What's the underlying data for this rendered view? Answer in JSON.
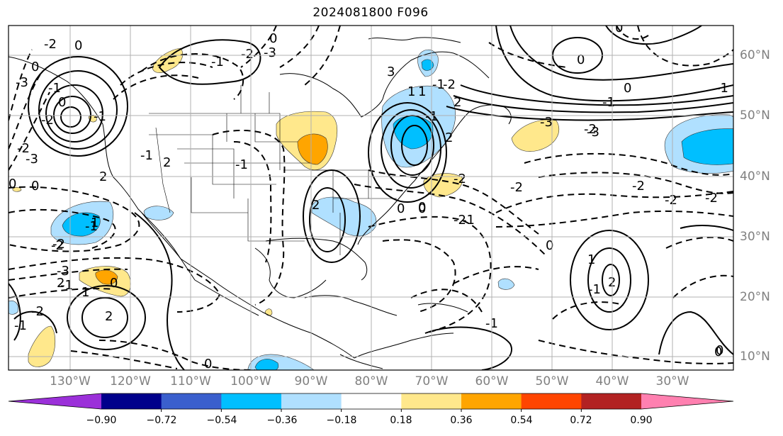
{
  "title": "2024081800 F096",
  "lat_labels": [
    "60°N",
    "50°N",
    "40°N",
    "30°N",
    "20°N",
    "10°N"
  ],
  "lon_labels": [
    "130°W",
    "120°W",
    "110°W",
    "100°W",
    "90°W",
    "80°W",
    "70°W",
    "60°W",
    "50°W",
    "40°W",
    "30°W"
  ],
  "colorbar": {
    "colors": [
      "#9b30d9",
      "#00008b",
      "#3a5fcd",
      "#00bfff",
      "#b0e0ff",
      "#ffffff",
      "#ffe88c",
      "#ffa500",
      "#ff4500",
      "#b22222",
      "#ff80b0"
    ],
    "labels": [
      "−0.90",
      "−0.72",
      "−0.54",
      "−0.36",
      "−0.18",
      "0.18",
      "0.36",
      "0.54",
      "0.72",
      "0.90"
    ]
  },
  "contour_labels": [
    "-2",
    "0",
    "-3",
    "-1",
    "0",
    "-1",
    "-2",
    "-3",
    "-1",
    "-2",
    "-3",
    "2",
    "-1",
    "-2",
    "0",
    "-1",
    "2",
    "3",
    "-3",
    "-1",
    "2",
    "0",
    "-1",
    "-2",
    "-3",
    "-2",
    "-1",
    "0",
    "0",
    "-2",
    "-2",
    "-2",
    "2",
    "1",
    "0",
    "-1",
    "-2",
    "0",
    "-1",
    "0",
    "-2",
    "0",
    "1",
    "2",
    "-1",
    "0",
    "-1",
    "-2",
    "-3",
    "-1",
    "0",
    "1",
    "2",
    "0",
    "-2",
    "2",
    "-2",
    "1",
    "-1",
    "-1",
    "0",
    "0",
    "-2",
    "1",
    "2",
    "0",
    "0"
  ]
}
